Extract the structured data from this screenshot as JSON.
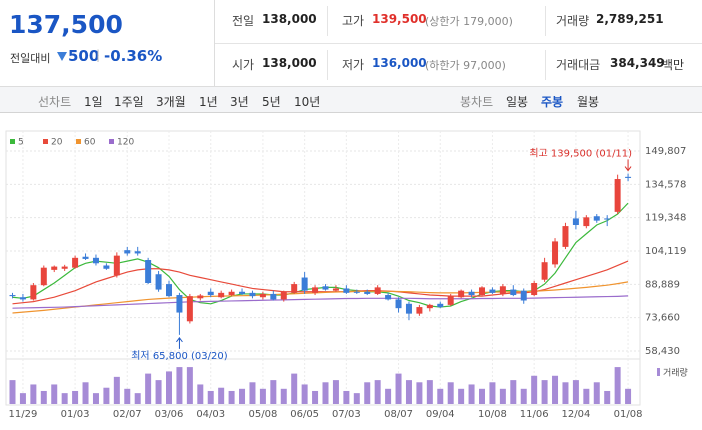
{
  "header": {
    "price": "137,500",
    "change_label": "전일대비",
    "change": "500",
    "change_rate": "-0.36%",
    "prev_close_label": "전일",
    "prev_close": "138,000",
    "high_label": "고가",
    "high": "139,500",
    "upper_limit": "(상한가 179,000)",
    "volume_label": "거래량",
    "volume": "2,789,251",
    "open_label": "시가",
    "open": "138,000",
    "low_label": "저가",
    "low": "136,000",
    "lower_limit": "(하한가 97,000)",
    "amount_label": "거래대금",
    "amount": "384,349",
    "amount_unit": "백만"
  },
  "tabs": {
    "line_label": "선차트",
    "line_periods": [
      "1일",
      "1주일",
      "3개월",
      "1년",
      "3년",
      "5년",
      "10년"
    ],
    "candle_label": "봉차트",
    "candle_periods": [
      "일봉",
      "주봉",
      "월봉"
    ]
  },
  "chart_data": {
    "type": "candlestick",
    "categories": [
      null,
      "11/29",
      null,
      null,
      null,
      null,
      "01/03",
      null,
      null,
      null,
      null,
      "02/07",
      null,
      null,
      null,
      "03/06",
      null,
      null,
      null,
      "04/03",
      null,
      null,
      null,
      null,
      "05/08",
      null,
      null,
      null,
      "06/05",
      null,
      null,
      null,
      "07/03",
      null,
      null,
      null,
      null,
      "08/07",
      null,
      null,
      null,
      "09/04",
      null,
      null,
      null,
      null,
      "10/08",
      null,
      null,
      null,
      "11/06",
      null,
      null,
      null,
      "12/04",
      null,
      null,
      null,
      null,
      "01/08"
    ],
    "open": [
      84000,
      83000,
      82000,
      88500,
      95500,
      96000,
      96500,
      101500,
      101000,
      97500,
      93000,
      104500,
      104000,
      100000,
      93500,
      89000,
      84000,
      72000,
      82500,
      85500,
      83000,
      84000,
      85500,
      85000,
      83000,
      84500,
      82000,
      85000,
      92000,
      85000,
      88000,
      86000,
      87000,
      85500,
      85500,
      84500,
      84000,
      82000,
      80000,
      75500,
      78000,
      80000,
      79500,
      83000,
      85500,
      84000,
      86500,
      84500,
      86500,
      86000,
      84000,
      91000,
      98000,
      106000,
      119000,
      115500,
      120000,
      119000,
      122000,
      138000
    ],
    "high": [
      85000,
      84500,
      89500,
      97500,
      97500,
      97800,
      102000,
      103000,
      102500,
      98500,
      103500,
      106000,
      106000,
      101000,
      95000,
      90500,
      85000,
      84500,
      84500,
      87000,
      86000,
      86500,
      87000,
      86000,
      85500,
      86000,
      86000,
      90000,
      94500,
      88500,
      89000,
      88500,
      88500,
      86500,
      86500,
      88500,
      85000,
      83000,
      81000,
      79500,
      80000,
      81000,
      84500,
      86500,
      86500,
      88000,
      87500,
      89000,
      88500,
      87000,
      90500,
      101000,
      110000,
      117000,
      122500,
      120500,
      121000,
      120500,
      139000,
      139500
    ],
    "low": [
      82500,
      81000,
      81500,
      88000,
      94500,
      95000,
      96000,
      100000,
      97500,
      95500,
      92000,
      102000,
      102000,
      89000,
      85500,
      83000,
      65800,
      71000,
      81500,
      83000,
      82500,
      83500,
      84000,
      82500,
      82000,
      81500,
      81000,
      84500,
      84500,
      84000,
      86000,
      85500,
      84500,
      84500,
      84000,
      84000,
      81500,
      76000,
      72500,
      74500,
      76500,
      78000,
      79000,
      82500,
      83000,
      83500,
      84500,
      83500,
      83500,
      80000,
      83500,
      90000,
      96500,
      105000,
      114000,
      114500,
      117000,
      115500,
      121000,
      136000
    ],
    "close": [
      83500,
      82000,
      88500,
      96500,
      97000,
      97000,
      101000,
      100500,
      98500,
      96000,
      102000,
      103000,
      103000,
      89500,
      86500,
      83500,
      76000,
      83500,
      83800,
      84000,
      85000,
      85500,
      84500,
      83500,
      84500,
      82000,
      85500,
      89000,
      86000,
      87500,
      86500,
      87000,
      85000,
      85000,
      84500,
      87500,
      82000,
      78000,
      75500,
      78500,
      79500,
      78500,
      83500,
      86000,
      84000,
      87500,
      85000,
      88000,
      84000,
      81500,
      89500,
      99000,
      108500,
      115500,
      116000,
      119500,
      118000,
      118500,
      137000,
      137500
    ],
    "up_color": "#e8453c",
    "down_color": "#3b7dd8",
    "series": [
      {
        "name": "5",
        "color": "#3cb93c",
        "values": [
          83000,
          82500,
          83500,
          86500,
          89500,
          93000,
          96500,
          98500,
          99500,
          99000,
          98500,
          99500,
          100500,
          99000,
          96500,
          92500,
          86500,
          82000,
          80500,
          80000,
          81500,
          83500,
          84500,
          84500,
          84500,
          84000,
          84000,
          85000,
          86500,
          87000,
          87500,
          87500,
          86500,
          86000,
          85500,
          85500,
          85000,
          83500,
          81500,
          80500,
          79000,
          78500,
          79000,
          81000,
          82500,
          84500,
          85500,
          86000,
          86000,
          85500,
          86000,
          89000,
          94000,
          101000,
          108000,
          112000,
          116000,
          118000,
          121000,
          126000
        ]
      },
      {
        "name": "20",
        "color": "#e84a3a",
        "values": [
          80000,
          80500,
          81000,
          82000,
          83000,
          84500,
          86000,
          88000,
          90000,
          91500,
          93000,
          94500,
          95500,
          96000,
          96000,
          95500,
          94500,
          93000,
          92000,
          91000,
          90000,
          89000,
          88000,
          87000,
          86500,
          86000,
          85500,
          85500,
          85500,
          85500,
          85500,
          85500,
          85500,
          85800,
          86000,
          86000,
          85800,
          85500,
          85000,
          84500,
          84000,
          83800,
          83500,
          83500,
          83500,
          83500,
          84000,
          84500,
          85000,
          85000,
          85500,
          86500,
          88000,
          89500,
          91000,
          92500,
          94000,
          95500,
          97500,
          99500
        ]
      },
      {
        "name": "60",
        "color": "#f0942f",
        "values": [
          75800,
          76200,
          76600,
          77000,
          77500,
          78000,
          78500,
          79000,
          79500,
          80000,
          80500,
          81000,
          81500,
          82000,
          82300,
          82600,
          82800,
          83000,
          83200,
          83400,
          83500,
          83600,
          83700,
          83800,
          84000,
          84200,
          84400,
          84600,
          84800,
          85000,
          85200,
          85400,
          85500,
          85600,
          85700,
          85700,
          85700,
          85600,
          85500,
          85300,
          85100,
          85000,
          85000,
          85000,
          85100,
          85200,
          85300,
          85400,
          85500,
          85600,
          85700,
          86000,
          86300,
          86700,
          87100,
          87500,
          88000,
          88500,
          89200,
          90000
        ]
      },
      {
        "name": "120",
        "color": "#9a6ccc",
        "values": [
          78000,
          78100,
          78200,
          78300,
          78400,
          78500,
          78700,
          78900,
          79100,
          79300,
          79500,
          79700,
          79900,
          80100,
          80300,
          80500,
          80700,
          80900,
          81000,
          81100,
          81200,
          81300,
          81400,
          81500,
          81600,
          81700,
          81800,
          81900,
          82000,
          82100,
          82200,
          82300,
          82400,
          82400,
          82500,
          82500,
          82500,
          82500,
          82500,
          82400,
          82300,
          82300,
          82300,
          82300,
          82300,
          82400,
          82400,
          82500,
          82500,
          82500,
          82600,
          82700,
          82800,
          82900,
          83000,
          83100,
          83200,
          83300,
          83400,
          83600
        ]
      }
    ],
    "volume": {
      "name": "거래량",
      "color": "#a68bd6",
      "ylim": [
        0,
        14000000
      ],
      "values": [
        8800000,
        4000000,
        7200000,
        4800000,
        7200000,
        4000000,
        4800000,
        8000000,
        4000000,
        6000000,
        10000000,
        5600000,
        4000000,
        11200000,
        8800000,
        12000000,
        13600000,
        13600000,
        7200000,
        4800000,
        6000000,
        4800000,
        5600000,
        8000000,
        5600000,
        8800000,
        5600000,
        11200000,
        7200000,
        4800000,
        8000000,
        8800000,
        4800000,
        4000000,
        8000000,
        8800000,
        5600000,
        11200000,
        8800000,
        8000000,
        8800000,
        5600000,
        8000000,
        5600000,
        7200000,
        5600000,
        8000000,
        5600000,
        8800000,
        5600000,
        10400000,
        8800000,
        10400000,
        8000000,
        8800000,
        5600000,
        8000000,
        4800000,
        13600000,
        5600000
      ]
    },
    "ylim": [
      58430,
      149807
    ],
    "yticks": [
      {
        "value": 149807,
        "label": "149,807"
      },
      {
        "value": 134578,
        "label": "134,578"
      },
      {
        "value": 119348,
        "label": "119,348"
      },
      {
        "value": 104119,
        "label": "104,119"
      },
      {
        "value": 88889,
        "label": "88,889"
      },
      {
        "value": 73660,
        "label": "73,660"
      },
      {
        "value": 58430,
        "label": "58,430"
      }
    ],
    "grid": true,
    "annotations": {
      "max": "최고 139,500 (01/11)",
      "min": "최저 65,800 (03/20)"
    }
  }
}
